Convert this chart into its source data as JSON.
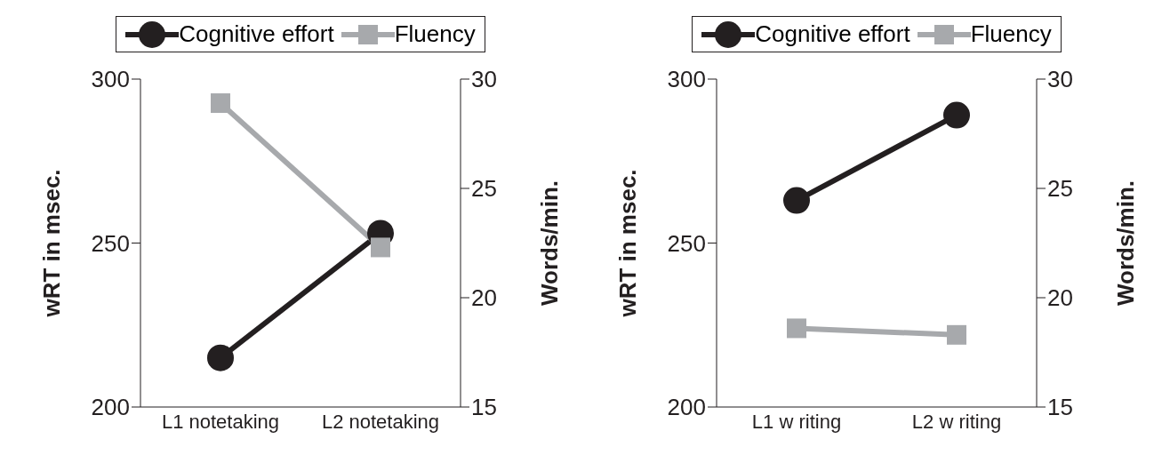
{
  "chart_data": [
    {
      "type": "line",
      "categories": [
        "L1 notetaking",
        "L2 notetaking"
      ],
      "ylabel": "wRT in msec.",
      "y2label": "Words/min.",
      "ylim": [
        200,
        300
      ],
      "yticks": [
        200,
        250,
        300
      ],
      "y2lim": [
        15,
        30
      ],
      "y2ticks": [
        15,
        20,
        25,
        30
      ],
      "legend": "top",
      "grid": false,
      "series": [
        {
          "name": "Cognitive effort",
          "color": "#231f20",
          "marker": "circle",
          "values": [
            215,
            253
          ]
        },
        {
          "name": "Fluency",
          "color": "#a7a9ac",
          "marker": "square",
          "axis": "y2",
          "values": [
            28.9,
            22.3
          ]
        }
      ]
    },
    {
      "type": "line",
      "categories": [
        "L1 w riting",
        "L2 w riting"
      ],
      "ylabel": "wRT in msec.",
      "y2label": "Words/min.",
      "ylim": [
        200,
        300
      ],
      "yticks": [
        200,
        250,
        300
      ],
      "y2lim": [
        15,
        30
      ],
      "y2ticks": [
        15,
        20,
        25,
        30
      ],
      "legend": "top",
      "grid": false,
      "series": [
        {
          "name": "Cognitive effort",
          "color": "#231f20",
          "marker": "circle",
          "values": [
            263,
            289
          ]
        },
        {
          "name": "Fluency",
          "color": "#a7a9ac",
          "marker": "square",
          "axis": "y2",
          "values": [
            18.6,
            18.3
          ]
        }
      ]
    }
  ]
}
